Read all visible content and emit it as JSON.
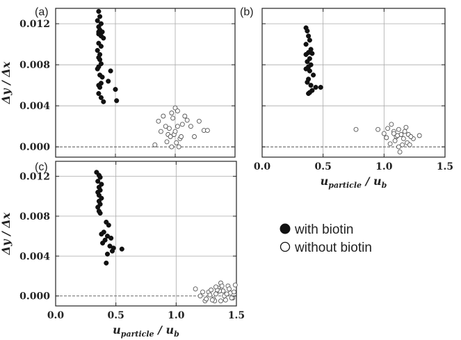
{
  "chart_data": [
    {
      "panel": "(a)",
      "type": "scatter",
      "xlim": [
        0.0,
        1.5
      ],
      "ylim": [
        -0.001,
        0.0135
      ],
      "yticks": [
        "0.000",
        "0.004",
        "0.008",
        "0.012"
      ],
      "ylabel": "Δy / Δx",
      "grid": true,
      "series": [
        {
          "name": "with biotin",
          "marker": "filled",
          "x": [
            0.36,
            0.37,
            0.35,
            0.38,
            0.36,
            0.37,
            0.39,
            0.36,
            0.38,
            0.4,
            0.36,
            0.38,
            0.35,
            0.37,
            0.36,
            0.37,
            0.38,
            0.36,
            0.35,
            0.37,
            0.39,
            0.44,
            0.46,
            0.5,
            0.51,
            0.38,
            0.36,
            0.37,
            0.36,
            0.38,
            0.4,
            0.36
          ],
          "y": [
            0.0132,
            0.0127,
            0.0123,
            0.012,
            0.0117,
            0.0114,
            0.0112,
            0.011,
            0.0108,
            0.0106,
            0.0101,
            0.0098,
            0.0094,
            0.009,
            0.0087,
            0.0085,
            0.0081,
            0.0078,
            0.0076,
            0.007,
            0.0068,
            0.0064,
            0.0074,
            0.0056,
            0.0045,
            0.0062,
            0.006,
            0.0058,
            0.0052,
            0.0048,
            0.0044,
            0.0112
          ]
        },
        {
          "name": "without biotin",
          "marker": "open",
          "x": [
            0.83,
            0.86,
            0.88,
            0.9,
            0.92,
            0.94,
            0.96,
            0.98,
            1.0,
            1.02,
            1.04,
            1.06,
            1.08,
            1.1,
            1.13,
            1.16,
            1.2,
            1.24,
            1.27,
            0.93,
            0.97,
            1.01,
            1.03,
            1.05,
            0.95,
            0.99,
            1.0,
            0.97,
            1.02
          ],
          "y": [
            0.0002,
            0.0025,
            0.0015,
            0.003,
            0.002,
            0.0012,
            0.001,
            0.0028,
            0.0038,
            0.0035,
            0.0008,
            0.0022,
            0.003,
            0.0026,
            0.002,
            0.001,
            0.0025,
            0.0016,
            0.0016,
            0.0005,
            0.0,
            0.0004,
            0.0,
            0.001,
            0.0018,
            0.0012,
            0.0015,
            0.0033,
            0.002
          ]
        }
      ]
    },
    {
      "panel": "(b)",
      "type": "scatter",
      "xlim": [
        0.0,
        1.5
      ],
      "ylim": [
        -0.001,
        0.0135
      ],
      "xticks": [
        "0.0",
        "0.5",
        "1.0",
        "1.5"
      ],
      "xlabel": "u_particle / u_b",
      "grid": true,
      "series": [
        {
          "name": "with biotin",
          "marker": "filled",
          "x": [
            0.36,
            0.37,
            0.38,
            0.39,
            0.36,
            0.4,
            0.38,
            0.36,
            0.39,
            0.41,
            0.37,
            0.4,
            0.38,
            0.36,
            0.39,
            0.42,
            0.38,
            0.37,
            0.4,
            0.44,
            0.48,
            0.41,
            0.39,
            0.38
          ],
          "y": [
            0.0116,
            0.0113,
            0.0108,
            0.0104,
            0.01,
            0.0095,
            0.0092,
            0.009,
            0.0086,
            0.0091,
            0.0083,
            0.008,
            0.0078,
            0.0076,
            0.0074,
            0.007,
            0.0066,
            0.0063,
            0.006,
            0.0058,
            0.0058,
            0.0055,
            0.0053,
            0.0052
          ]
        },
        {
          "name": "without biotin",
          "marker": "open",
          "x": [
            0.77,
            0.95,
            1.0,
            1.03,
            1.06,
            1.08,
            1.1,
            1.12,
            1.14,
            1.16,
            1.18,
            1.2,
            1.24,
            1.29,
            1.02,
            1.05,
            1.09,
            1.12,
            1.15,
            1.19,
            1.21,
            1.08,
            1.11,
            1.17,
            1.22,
            1.13
          ],
          "y": [
            0.0017,
            0.0017,
            0.0013,
            0.0018,
            0.0022,
            0.0015,
            0.001,
            0.0017,
            0.0012,
            0.0008,
            0.0019,
            0.0012,
            0.0008,
            0.0011,
            0.0009,
            0.0003,
            0.0006,
            0.0,
            0.0002,
            0.0004,
            0.0002,
            0.0013,
            0.0011,
            0.0015,
            0.001,
            -0.0005
          ]
        }
      ]
    },
    {
      "panel": "(c)",
      "type": "scatter",
      "xlim": [
        0.0,
        1.5
      ],
      "ylim": [
        -0.001,
        0.0135
      ],
      "xticks": [
        "0.0",
        "0.5",
        "1.0",
        "1.5"
      ],
      "yticks": [
        "0.000",
        "0.004",
        "0.008",
        "0.012"
      ],
      "xlabel": "u_particle / u_b",
      "ylabel": "Δy / Δx",
      "grid": true,
      "series": [
        {
          "name": "with biotin",
          "marker": "filled",
          "x": [
            0.34,
            0.36,
            0.37,
            0.35,
            0.38,
            0.36,
            0.37,
            0.35,
            0.36,
            0.38,
            0.36,
            0.37,
            0.35,
            0.36,
            0.37,
            0.42,
            0.44,
            0.4,
            0.38,
            0.43,
            0.46,
            0.41,
            0.39,
            0.45,
            0.48,
            0.55,
            0.47,
            0.43,
            0.42
          ],
          "y": [
            0.0124,
            0.0121,
            0.0119,
            0.0115,
            0.0112,
            0.0109,
            0.0106,
            0.0104,
            0.0101,
            0.0098,
            0.0095,
            0.0092,
            0.0089,
            0.0085,
            0.0083,
            0.0074,
            0.0071,
            0.0064,
            0.0062,
            0.006,
            0.0058,
            0.0056,
            0.0053,
            0.005,
            0.0048,
            0.0047,
            0.0045,
            0.0042,
            0.0033
          ]
        },
        {
          "name": "without biotin",
          "marker": "open",
          "x": [
            1.16,
            1.2,
            1.24,
            1.27,
            1.29,
            1.31,
            1.33,
            1.35,
            1.37,
            1.39,
            1.41,
            1.43,
            1.45,
            1.47,
            1.49,
            1.28,
            1.32,
            1.36,
            1.4,
            1.44,
            1.48,
            1.3,
            1.34,
            1.38,
            1.42,
            1.46,
            1.25,
            1.22,
            1.33,
            1.37
          ],
          "y": [
            0.0007,
            0.0,
            -0.0005,
            0.0004,
            0.0006,
            -0.0003,
            0.0002,
            0.0008,
            0.0013,
            0.0005,
            -0.0004,
            0.001,
            0.0003,
            -0.0002,
            0.0011,
            0.0001,
            -0.0005,
            0.0005,
            0.0,
            0.0007,
            0.0004,
            -0.0004,
            0.0006,
            0.001,
            0.0002,
            -0.0002,
            -0.0003,
            0.0004,
            0.0009,
            -0.0005
          ]
        }
      ]
    }
  ],
  "legend": {
    "items": [
      {
        "marker": "filled",
        "label": "with biotin"
      },
      {
        "marker": "open",
        "label": "without biotin"
      }
    ]
  }
}
